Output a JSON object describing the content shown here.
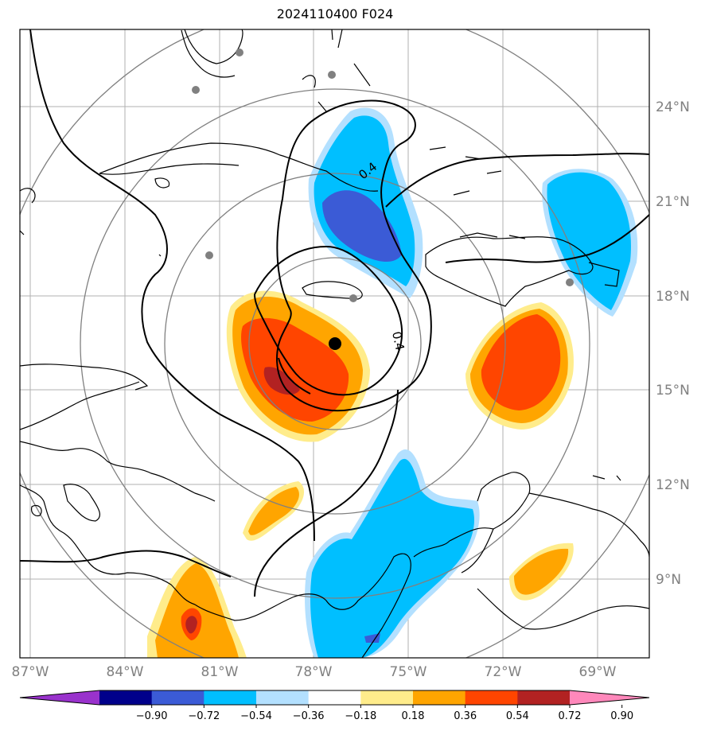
{
  "title": "2024110400 F024",
  "lat_labels": [
    "24°N",
    "21°N",
    "18°N",
    "15°N",
    "12°N",
    "9°N"
  ],
  "lon_labels": [
    "87°W",
    "84°W",
    "81°W",
    "78°W",
    "75°W",
    "72°W",
    "69°W"
  ],
  "contour_labels": [
    "0.4",
    "0.4"
  ],
  "colorbar": {
    "ticks": [
      "−0.90",
      "−0.72",
      "−0.54",
      "−0.36",
      "−0.18",
      "0.18",
      "0.36",
      "0.54",
      "0.72",
      "0.90"
    ],
    "colors": [
      "#9932cc",
      "#00008b",
      "#3b5bd6",
      "#00bfff",
      "#b3e0ff",
      "#ffffff",
      "#ffec8b",
      "#ffa500",
      "#ff4500",
      "#b22222",
      "#ff88bb"
    ]
  },
  "colors": {
    "grid": "#b0b0b0",
    "rings": "#808080",
    "coast": "#000000",
    "center_marker": "#000000",
    "station_marker": "#808080"
  }
}
